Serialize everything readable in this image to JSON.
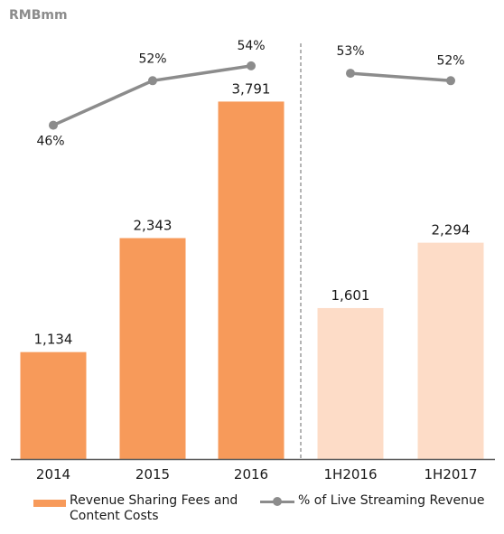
{
  "unit_label": "RMBmm",
  "colors": {
    "bar_full_year": "#F79A5A",
    "bar_half_year": "#FDDCC7",
    "line": "#8C8C8C",
    "divider": "#8C8C8C",
    "axis": "#595959"
  },
  "chart_data": {
    "type": "bar",
    "categories": [
      "2014",
      "2015",
      "2016",
      "1H2016",
      "1H2017"
    ],
    "series": [
      {
        "name": "Revenue Sharing Fees and Content Costs",
        "type": "bar",
        "values": [
          1134,
          2343,
          3791,
          1601,
          2294
        ],
        "value_labels": [
          "1,134",
          "2,343",
          "3,791",
          "1,601",
          "2,294"
        ]
      },
      {
        "name": "% of Live Streaming Revenue",
        "type": "line",
        "values": [
          46,
          52,
          54,
          53,
          52
        ],
        "value_labels": [
          "46%",
          "52%",
          "54%",
          "53%",
          "52%"
        ],
        "segments": [
          [
            0,
            1,
            2
          ],
          [
            3,
            4
          ]
        ]
      }
    ],
    "ylim": [
      0,
      4600
    ],
    "line_ylim": [
      30,
      58
    ],
    "divider_after_category": 2,
    "grid": false,
    "legend_position": "bottom"
  },
  "legend": {
    "bar_label": "Revenue Sharing Fees and Content Costs",
    "line_label": "% of Live Streaming Revenue"
  }
}
